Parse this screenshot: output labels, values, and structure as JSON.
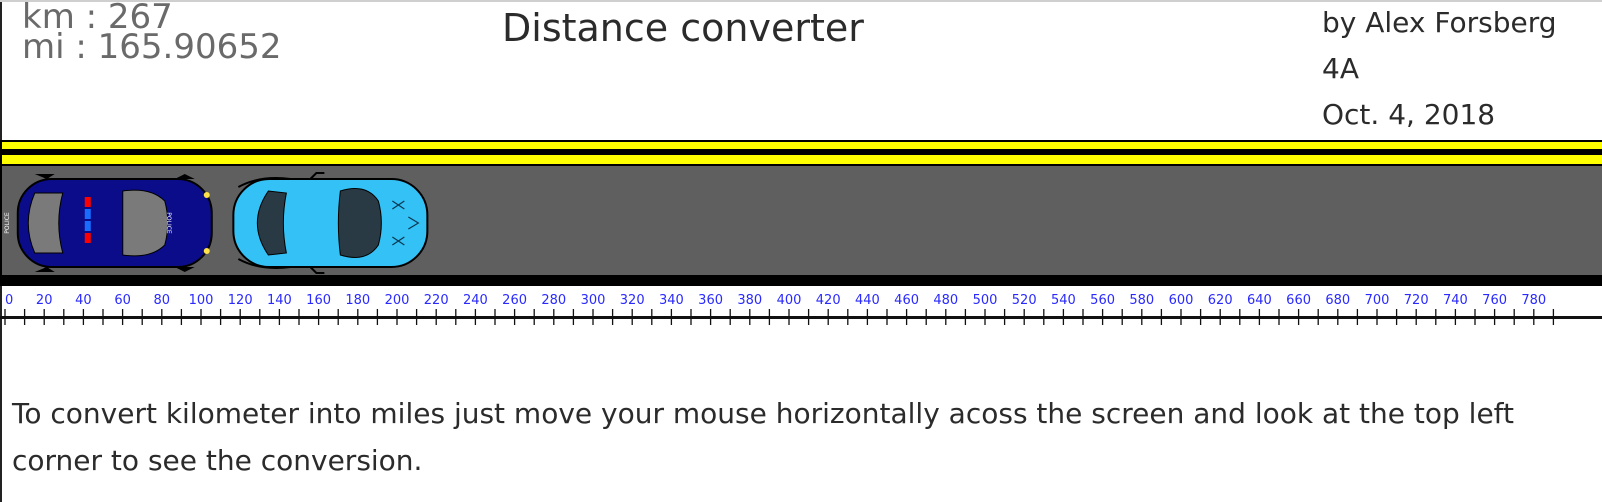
{
  "readout": {
    "km": "km : 267",
    "mi": "mi : 165.90652"
  },
  "title": "Distance converter",
  "credits": {
    "author": "by Alex Forsberg",
    "class": "4A",
    "date": "Oct. 4, 2018"
  },
  "ruler": {
    "min": 0,
    "max": 780,
    "step": 20,
    "labels": [
      "0",
      "20",
      "40",
      "60",
      "80",
      "100",
      "120",
      "140",
      "160",
      "180",
      "200",
      "220",
      "240",
      "260",
      "280",
      "300",
      "320",
      "340",
      "360",
      "380",
      "400",
      "420",
      "440",
      "460",
      "480",
      "500",
      "520",
      "540",
      "560",
      "580",
      "600",
      "620",
      "640",
      "660",
      "680",
      "700",
      "720",
      "740",
      "760",
      "780"
    ]
  },
  "cars": [
    {
      "name": "police-car",
      "kind": "police",
      "position_km": 56,
      "side_text_rear": "POLICE",
      "side_text_front": "POLICE"
    },
    {
      "name": "blue-sports-car",
      "kind": "sports",
      "position_km": 166
    }
  ],
  "colors": {
    "road": "#5f5f5f",
    "lane": "#ffff00",
    "police_body": "#0b0c8a",
    "sports_body": "#33c1f6",
    "label": "#2a2aff",
    "text": "#2b2b2b",
    "readout": "#6a6a6a"
  },
  "instructions": "To convert kilometer into miles just move your mouse horizontally acoss the screen and look at the top left corner to see the conversion."
}
